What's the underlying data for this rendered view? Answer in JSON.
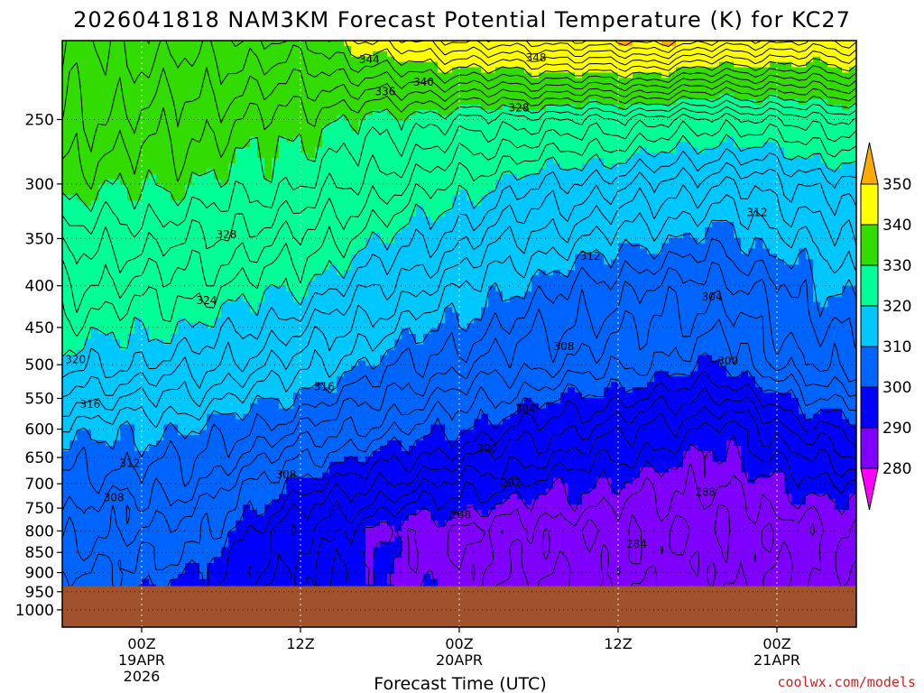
{
  "chart_data": {
    "type": "contour",
    "title": "2026041818 NAM3KM Forecast Potential Temperature (K) for KC27",
    "xlabel": "Forecast Time (UTC)",
    "ylabel": "",
    "x_ticks": [
      {
        "line1": "00Z",
        "line2": "19APR",
        "line3": "2026",
        "hours": 6
      },
      {
        "line1": "12Z",
        "line2": "",
        "line3": "",
        "hours": 18
      },
      {
        "line1": "00Z",
        "line2": "20APR",
        "line3": "",
        "hours": 30
      },
      {
        "line1": "12Z",
        "line2": "",
        "line3": "",
        "hours": 42
      },
      {
        "line1": "00Z",
        "line2": "21APR",
        "line3": "",
        "hours": 54
      }
    ],
    "xlim_hours": [
      0,
      60
    ],
    "y_ticks": [
      250,
      300,
      350,
      400,
      450,
      500,
      550,
      600,
      650,
      700,
      750,
      800,
      850,
      900,
      950,
      1000
    ],
    "ylim_hpa": [
      200,
      1050
    ],
    "y_scale": "log-pressure",
    "colorbar": {
      "levels": [
        280,
        290,
        300,
        310,
        320,
        330,
        340,
        350
      ],
      "colors": [
        "#ff00ff",
        "#7f00ff",
        "#0000ff",
        "#0064ff",
        "#00c8ff",
        "#00ff96",
        "#32dc00",
        "#ffff00",
        "#ffaa00"
      ]
    },
    "contour_interval": 2,
    "contour_labels": [
      {
        "text": "344",
        "hours": 23.2,
        "p": 211
      },
      {
        "text": "336",
        "hours": 24.4,
        "p": 231
      },
      {
        "text": "340",
        "hours": 27.3,
        "p": 225
      },
      {
        "text": "348",
        "hours": 35.8,
        "p": 210
      },
      {
        "text": "328",
        "hours": 34.5,
        "p": 242
      },
      {
        "text": "328",
        "hours": 12.4,
        "p": 346
      },
      {
        "text": "312",
        "hours": 39.9,
        "p": 368
      },
      {
        "text": "312",
        "hours": 52.5,
        "p": 325
      },
      {
        "text": "324",
        "hours": 10.9,
        "p": 417
      },
      {
        "text": "304",
        "hours": 49.1,
        "p": 413
      },
      {
        "text": "308",
        "hours": 37.9,
        "p": 475
      },
      {
        "text": "320",
        "hours": 1.0,
        "p": 493
      },
      {
        "text": "300",
        "hours": 50.3,
        "p": 495
      },
      {
        "text": "316",
        "hours": 19.8,
        "p": 532
      },
      {
        "text": "316",
        "hours": 2.1,
        "p": 559
      },
      {
        "text": "304",
        "hours": 35.0,
        "p": 566
      },
      {
        "text": "312",
        "hours": 5.1,
        "p": 661
      },
      {
        "text": "300",
        "hours": 32.1,
        "p": 634
      },
      {
        "text": "308",
        "hours": 16.9,
        "p": 682
      },
      {
        "text": "308",
        "hours": 3.9,
        "p": 728
      },
      {
        "text": "292",
        "hours": 33.9,
        "p": 698
      },
      {
        "text": "288",
        "hours": 48.6,
        "p": 717
      },
      {
        "text": "288",
        "hours": 30.1,
        "p": 764
      },
      {
        "text": "284",
        "hours": 43.4,
        "p": 830
      }
    ],
    "surface_pressure_hpa": 935,
    "credit": "coolwx.com/models"
  }
}
